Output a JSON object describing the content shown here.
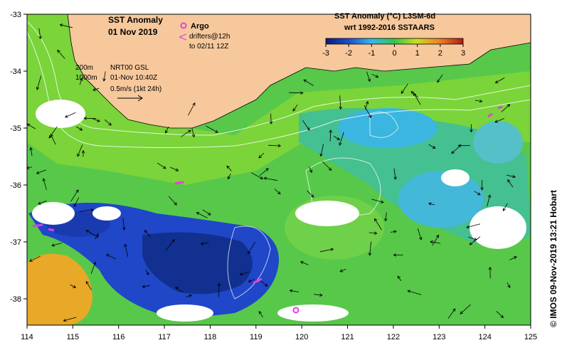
{
  "map": {
    "title_line1": "SST Anomaly",
    "title_line2": "01 Nov 2019",
    "argo_label": "Argo",
    "drifters_line1": "drifters@12h",
    "drifters_line2": "to 02/11 12Z",
    "contour_label_1": "200m",
    "contour_label_2": "1000m",
    "nrt_line1": "NRT00 GSL",
    "nrt_line2": "01-Nov 10:40Z",
    "nrt_line3": "0.5m/s (1kt 24h)",
    "colorbar_title_1": "SST Anomaly (°C) L3SM-6d",
    "colorbar_title_2": "wrt 1992-2016 SSTAARS",
    "colorbar_ticks": [
      "-3",
      "-2",
      "-1",
      "0",
      "1",
      "2",
      "3"
    ],
    "credit": "© IMOS 09-Nov-2019 13:21 Hobart",
    "lon_ticks": [
      "114",
      "115",
      "116",
      "117",
      "118",
      "119",
      "120",
      "121",
      "122",
      "123",
      "124",
      "125"
    ],
    "lat_ticks": [
      "-33",
      "-34",
      "-35",
      "-36",
      "-37",
      "-38"
    ],
    "colors": {
      "land": "#f6c89c",
      "argo": "#e040e0",
      "cold": "#1a3db8",
      "cool": "#30b0e8",
      "neutral": "#5bd04a",
      "warm": "#e8a020"
    }
  }
}
